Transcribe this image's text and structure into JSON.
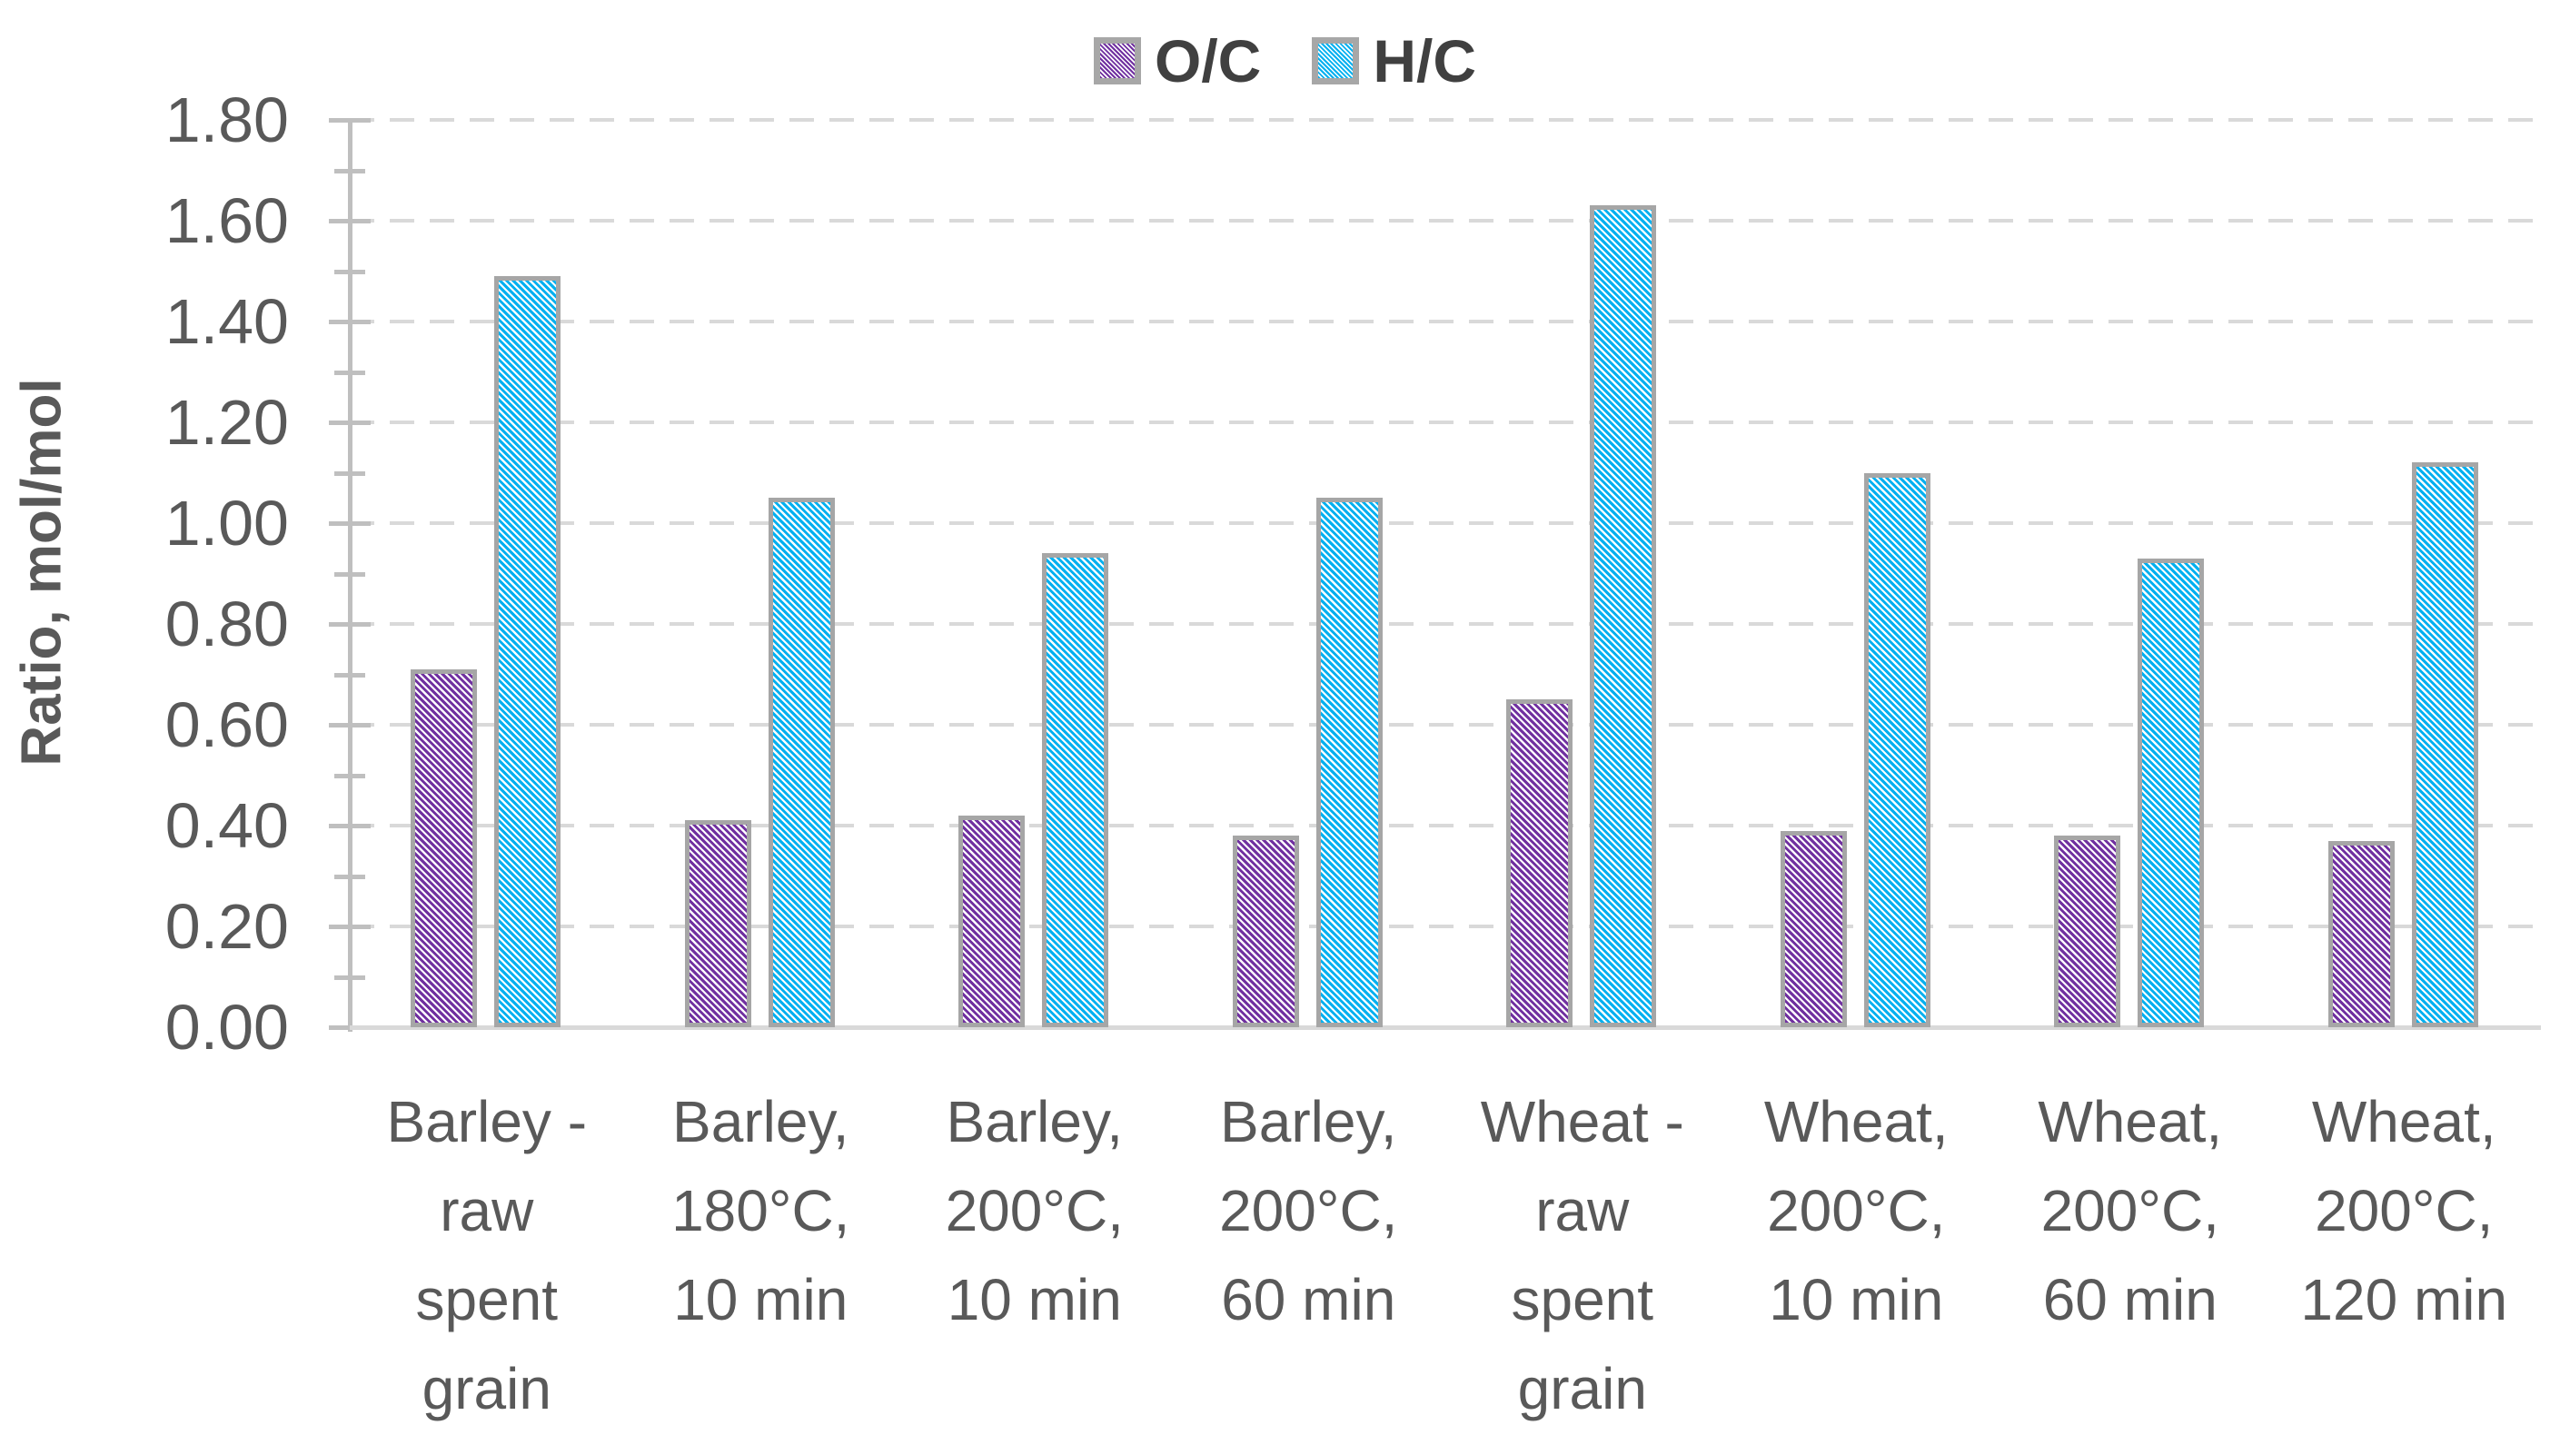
{
  "chart_data": {
    "type": "bar",
    "title": "",
    "xlabel": "",
    "ylabel": "Ratio, mol/mol",
    "ylim": [
      0,
      1.8
    ],
    "ytick_interval": 0.2,
    "ytick_minor_interval": 0.1,
    "ytick_labels": [
      "0.00",
      "0.20",
      "0.40",
      "0.60",
      "0.80",
      "1.00",
      "1.20",
      "1.40",
      "1.60",
      "1.80"
    ],
    "grid": "horizontal dashed lines at every 0.20",
    "legend_position": "top-center",
    "bar_outline_color": "#a6a6a6",
    "hatch_direction": "diagonal-down",
    "categories": [
      "Barley -\nraw\nspent\ngrain",
      "Barley,\n180°C,\n10 min",
      "Barley,\n200°C,\n10 min",
      "Barley,\n200°C,\n60 min",
      "Wheat -\nraw\nspent\ngrain",
      "Wheat,\n200°C,\n10 min",
      "Wheat,\n200°C,\n60 min",
      "Wheat,\n200°C,\n120 min"
    ],
    "series": [
      {
        "name": "O/C",
        "color": "#7030a0",
        "pattern": "white diagonal hatch",
        "values": [
          0.71,
          0.41,
          0.42,
          0.38,
          0.65,
          0.39,
          0.38,
          0.37
        ]
      },
      {
        "name": "H/C",
        "color": "#00b0f0",
        "pattern": "white diagonal hatch",
        "values": [
          1.49,
          1.05,
          0.94,
          1.05,
          1.63,
          1.1,
          0.93,
          1.12
        ]
      }
    ]
  },
  "colors": {
    "axis_line": "#bfbfbf",
    "gridline": "#d9d9d9",
    "tick_label_text": "#595959",
    "legend_text": "#404040"
  }
}
